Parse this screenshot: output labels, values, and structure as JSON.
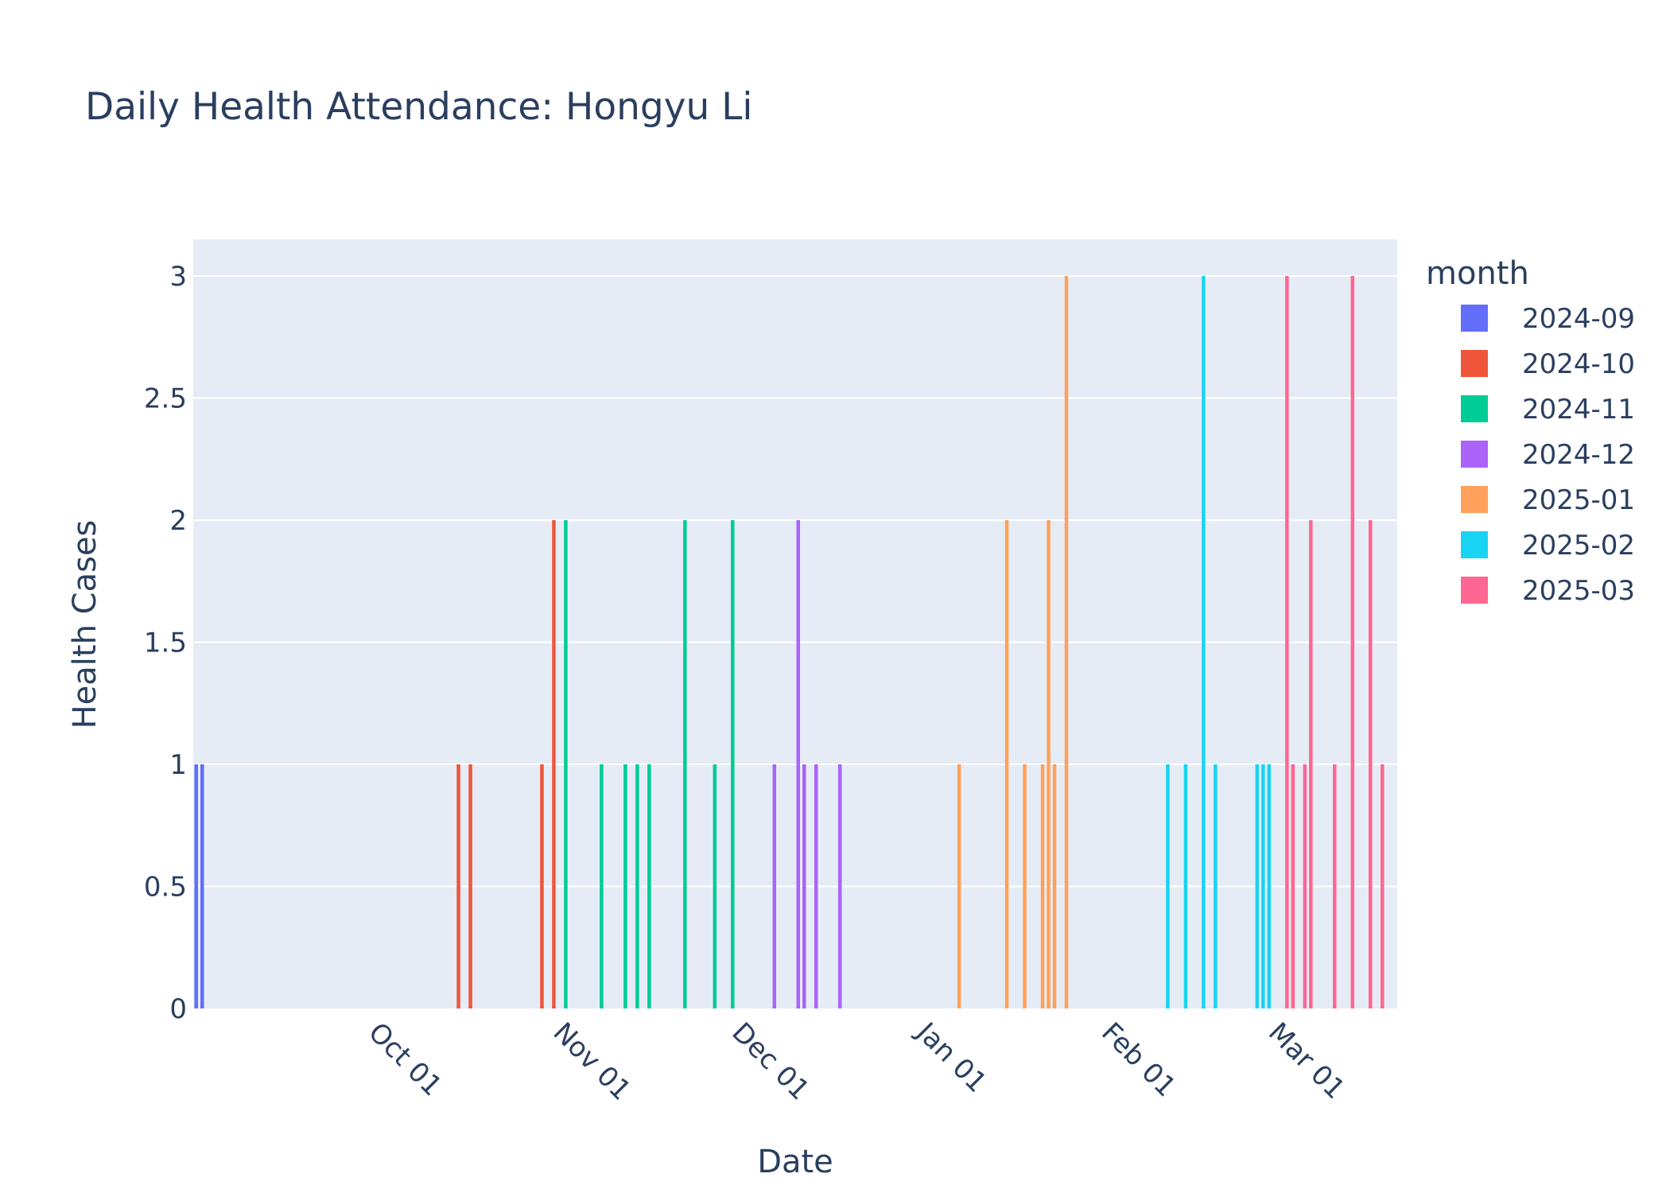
{
  "chart_data": {
    "type": "bar",
    "title": "Daily Health Attendance: Hongyu Li",
    "xlabel": "Date",
    "ylabel": "Health Cases",
    "ylim": [
      0,
      3.15
    ],
    "xlim": [
      "2024-09-01",
      "2025-03-21"
    ],
    "grid": true,
    "legend_position": "right",
    "x_ticks": [
      {
        "date": "2024-10-01",
        "label": "Oct 01"
      },
      {
        "date": "2024-11-01",
        "label": "Nov 01"
      },
      {
        "date": "2024-12-01",
        "label": "Dec 01"
      },
      {
        "date": "2025-01-01",
        "label": "Jan 01"
      },
      {
        "date": "2025-02-01",
        "label": "Feb 01"
      },
      {
        "date": "2025-03-01",
        "label": "Mar 01"
      }
    ],
    "y_ticks": [
      {
        "value": 0,
        "label": "0"
      },
      {
        "value": 0.5,
        "label": "0.5"
      },
      {
        "value": 1,
        "label": "1"
      },
      {
        "value": 1.5,
        "label": "1.5"
      },
      {
        "value": 2,
        "label": "2"
      },
      {
        "value": 2.5,
        "label": "2.5"
      },
      {
        "value": 3,
        "label": "3"
      }
    ],
    "legend_title": "month",
    "series": [
      {
        "name": "2024-09",
        "color": "#636efa",
        "points": [
          [
            "2024-09-01",
            1
          ],
          [
            "2024-09-02",
            1
          ]
        ]
      },
      {
        "name": "2024-10",
        "color": "#EF553B",
        "points": [
          [
            "2024-10-15",
            1
          ],
          [
            "2024-10-17",
            1
          ],
          [
            "2024-10-29",
            1
          ],
          [
            "2024-10-31",
            2
          ]
        ]
      },
      {
        "name": "2024-11",
        "color": "#00cc96",
        "points": [
          [
            "2024-11-02",
            2
          ],
          [
            "2024-11-08",
            1
          ],
          [
            "2024-11-12",
            1
          ],
          [
            "2024-11-14",
            1
          ],
          [
            "2024-11-16",
            1
          ],
          [
            "2024-11-22",
            2
          ],
          [
            "2024-11-27",
            1
          ],
          [
            "2024-11-30",
            2
          ]
        ]
      },
      {
        "name": "2024-12",
        "color": "#ab63fa",
        "points": [
          [
            "2024-12-07",
            1
          ],
          [
            "2024-12-11",
            2
          ],
          [
            "2024-12-12",
            1
          ],
          [
            "2024-12-14",
            1
          ],
          [
            "2024-12-18",
            1
          ]
        ]
      },
      {
        "name": "2025-01",
        "color": "#FFA15A",
        "points": [
          [
            "2025-01-07",
            1
          ],
          [
            "2025-01-15",
            2
          ],
          [
            "2025-01-18",
            1
          ],
          [
            "2025-01-21",
            1
          ],
          [
            "2025-01-22",
            2
          ],
          [
            "2025-01-23",
            1
          ],
          [
            "2025-01-25",
            3
          ]
        ]
      },
      {
        "name": "2025-02",
        "color": "#19d3f3",
        "points": [
          [
            "2025-02-11",
            1
          ],
          [
            "2025-02-14",
            1
          ],
          [
            "2025-02-17",
            3
          ],
          [
            "2025-02-19",
            1
          ],
          [
            "2025-02-26",
            1
          ],
          [
            "2025-02-27",
            1
          ],
          [
            "2025-02-28",
            1
          ]
        ]
      },
      {
        "name": "2025-03",
        "color": "#FF6692",
        "points": [
          [
            "2025-03-03",
            3
          ],
          [
            "2025-03-04",
            1
          ],
          [
            "2025-03-06",
            1
          ],
          [
            "2025-03-07",
            2
          ],
          [
            "2025-03-11",
            1
          ],
          [
            "2025-03-14",
            3
          ],
          [
            "2025-03-17",
            2
          ],
          [
            "2025-03-19",
            1
          ]
        ]
      }
    ]
  }
}
